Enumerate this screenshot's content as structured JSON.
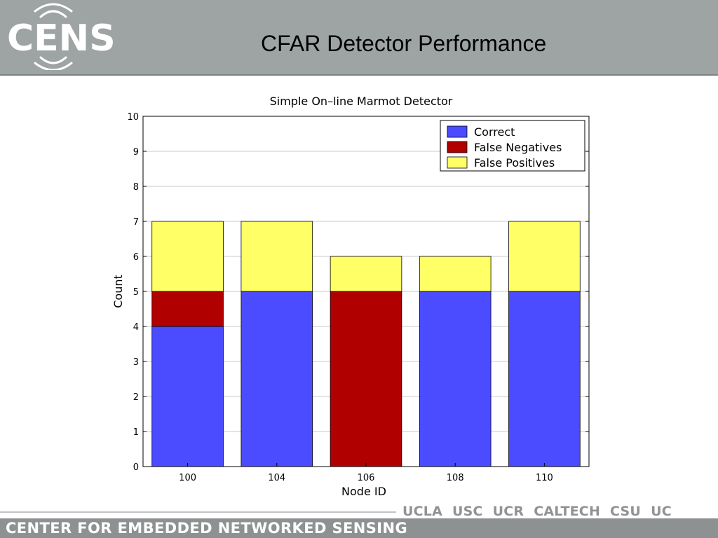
{
  "header": {
    "logo_text": "CENS",
    "title": "CFAR Detector Performance"
  },
  "footer": {
    "org_name": "CENTER FOR EMBEDDED NETWORKED SENSING",
    "campuses": [
      "UCLA",
      "USC",
      "UCR",
      "CALTECH",
      "CSU",
      "UC MERCED"
    ]
  },
  "colors": {
    "header_bg": "#9ea3a4",
    "correct": "#4b4bff",
    "false_negatives": "#b00000",
    "false_positives": "#ffff66"
  },
  "chart_data": {
    "type": "bar",
    "stacked": true,
    "title": "Simple On–line Marmot Detector",
    "xlabel": "Node ID",
    "ylabel": "Count",
    "categories": [
      "100",
      "104",
      "106",
      "108",
      "110"
    ],
    "ylim": [
      0,
      10
    ],
    "yticks": [
      0,
      1,
      2,
      3,
      4,
      5,
      6,
      7,
      8,
      9,
      10
    ],
    "grid": true,
    "legend_position": "top-right",
    "series": [
      {
        "name": "Correct",
        "values": [
          4,
          5,
          0,
          5,
          5
        ],
        "color": "#4b4bff"
      },
      {
        "name": "False Negatives",
        "values": [
          1,
          0,
          5,
          0,
          0
        ],
        "color": "#b00000"
      },
      {
        "name": "False Positives",
        "values": [
          2,
          2,
          1,
          1,
          2
        ],
        "color": "#ffff66"
      }
    ]
  }
}
